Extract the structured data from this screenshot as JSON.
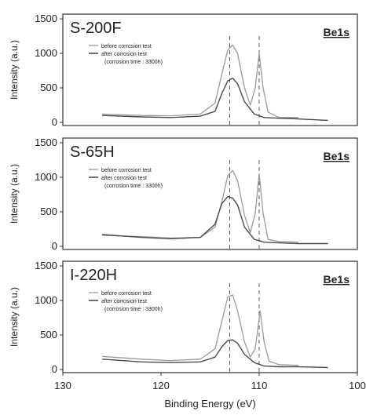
{
  "chart_data": [
    {
      "type": "line",
      "sample": "S-200F",
      "element": "Be1s",
      "ylabel": "Intensity (a.u.)",
      "ylim": [
        0,
        1500
      ],
      "yticks": [
        "0",
        "500",
        "1000",
        "1500"
      ],
      "xlim": [
        130,
        100
      ],
      "legend": {
        "before": "before corrosion test",
        "after": "after corrosion test",
        "note": "(corrosion time : 3300h)"
      },
      "series": [
        {
          "role": "before",
          "x": [
            126,
            122,
            119,
            116,
            114.5,
            113.8,
            113.2,
            112.7,
            112.2,
            111.5,
            110.9,
            110.4,
            110.0,
            109.6,
            109.1,
            108,
            106
          ],
          "y": [
            120,
            100,
            95,
            120,
            280,
            700,
            1050,
            1120,
            1000,
            500,
            250,
            500,
            1000,
            500,
            150,
            70,
            70
          ]
        },
        {
          "role": "after",
          "x": [
            126,
            122,
            119,
            116,
            114.5,
            113.8,
            113.2,
            112.7,
            112.2,
            111.5,
            110.5,
            109.5,
            108,
            106,
            103
          ],
          "y": [
            100,
            80,
            70,
            90,
            160,
            420,
            600,
            640,
            560,
            300,
            120,
            70,
            60,
            50,
            30
          ]
        }
      ],
      "dashed_lines_x": [
        113,
        110
      ]
    },
    {
      "type": "line",
      "sample": "S-65H",
      "element": "Be1s",
      "ylabel": "Intensity (a.u.)",
      "ylim": [
        0,
        1500
      ],
      "yticks": [
        "0",
        "500",
        "1000",
        "1500"
      ],
      "xlim": [
        130,
        100
      ],
      "legend": {
        "before": "before corrosion test",
        "after": "after corrosion test",
        "note": "(corrosion time : 3300h)"
      },
      "series": [
        {
          "role": "before",
          "x": [
            126,
            122,
            119,
            116,
            114.5,
            113.8,
            113.2,
            112.7,
            112.2,
            111.5,
            110.9,
            110.4,
            110.0,
            109.6,
            109.1,
            108,
            106
          ],
          "y": [
            160,
            140,
            120,
            130,
            280,
            650,
            1020,
            1100,
            950,
            450,
            200,
            480,
            1050,
            480,
            100,
            70,
            60
          ]
        },
        {
          "role": "after",
          "x": [
            126,
            122,
            119,
            116,
            114.5,
            113.8,
            113.2,
            112.7,
            112.2,
            111.5,
            110.5,
            109.5,
            108,
            106,
            103
          ],
          "y": [
            170,
            130,
            110,
            130,
            320,
            620,
            720,
            700,
            600,
            280,
            100,
            60,
            50,
            40,
            40
          ]
        }
      ],
      "dashed_lines_x": [
        113,
        110
      ]
    },
    {
      "type": "line",
      "sample": "I-220H",
      "element": "Be1s",
      "ylabel": "Intensity (a.u.)",
      "ylim": [
        0,
        1500
      ],
      "yticks": [
        "0",
        "500",
        "1000",
        "1500"
      ],
      "xlim": [
        130,
        100
      ],
      "xticks": [
        "130",
        "120",
        "110",
        "100"
      ],
      "xlabel": "Binding Energy (eV)",
      "legend": {
        "before": "before corrosion test",
        "after": "after corrosion test",
        "note": "(corrosion time : 3300h)"
      },
      "series": [
        {
          "role": "before",
          "x": [
            126,
            122,
            119,
            116,
            114.5,
            113.8,
            113.2,
            112.7,
            112.2,
            111.5,
            110.9,
            110.4,
            109.9,
            109.5,
            109.0,
            108,
            106
          ],
          "y": [
            190,
            150,
            130,
            150,
            300,
            700,
            1050,
            1080,
            850,
            400,
            180,
            300,
            850,
            400,
            120,
            70,
            60
          ]
        },
        {
          "role": "after",
          "x": [
            126,
            122,
            119,
            116,
            114.5,
            113.8,
            113.2,
            112.7,
            112.2,
            111.5,
            110.5,
            109.9,
            109.5,
            108,
            106,
            103
          ],
          "y": [
            150,
            110,
            100,
            110,
            180,
            330,
            420,
            430,
            380,
            220,
            100,
            70,
            50,
            40,
            40,
            30
          ]
        }
      ],
      "dashed_lines_x": [
        113,
        110
      ]
    }
  ],
  "colors": {
    "before": "#9a9a9a",
    "after": "#4a4a4a",
    "frame": "#333333",
    "text": "#222222"
  }
}
